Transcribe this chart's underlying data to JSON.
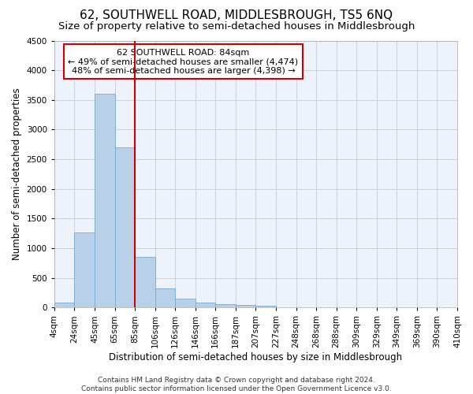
{
  "title": "62, SOUTHWELL ROAD, MIDDLESBROUGH, TS5 6NQ",
  "subtitle": "Size of property relative to semi-detached houses in Middlesbrough",
  "xlabel": "Distribution of semi-detached houses by size in Middlesbrough",
  "ylabel": "Number of semi-detached properties",
  "bar_color": "#b8d0e8",
  "bar_edge_color": "#7aaad0",
  "background_color": "#eef2fb",
  "grid_color": "#c8cfe0",
  "bin_labels": [
    "4sqm",
    "24sqm",
    "45sqm",
    "65sqm",
    "85sqm",
    "106sqm",
    "126sqm",
    "146sqm",
    "166sqm",
    "187sqm",
    "207sqm",
    "227sqm",
    "248sqm",
    "268sqm",
    "288sqm",
    "309sqm",
    "329sqm",
    "349sqm",
    "369sqm",
    "390sqm",
    "410sqm"
  ],
  "counts": [
    90,
    1260,
    3610,
    2700,
    850,
    320,
    155,
    80,
    60,
    50,
    30,
    0,
    0,
    0,
    0,
    0,
    0,
    0,
    0,
    0
  ],
  "ylim": [
    0,
    4500
  ],
  "yticks": [
    0,
    500,
    1000,
    1500,
    2000,
    2500,
    3000,
    3500,
    4000,
    4500
  ],
  "vline_x_index": 4,
  "annotation_title": "62 SOUTHWELL ROAD: 84sqm",
  "annotation_line1": "← 49% of semi-detached houses are smaller (4,474)",
  "annotation_line2": "48% of semi-detached houses are larger (4,398) →",
  "annotation_box_color": "#ffffff",
  "annotation_box_edge": "#cc0000",
  "vline_color": "#cc0000",
  "footer_line1": "Contains HM Land Registry data © Crown copyright and database right 2024.",
  "footer_line2": "Contains public sector information licensed under the Open Government Licence v3.0.",
  "title_fontsize": 11,
  "subtitle_fontsize": 9.5,
  "axis_label_fontsize": 8.5,
  "tick_fontsize": 7.5,
  "annotation_fontsize": 8,
  "footer_fontsize": 6.5
}
